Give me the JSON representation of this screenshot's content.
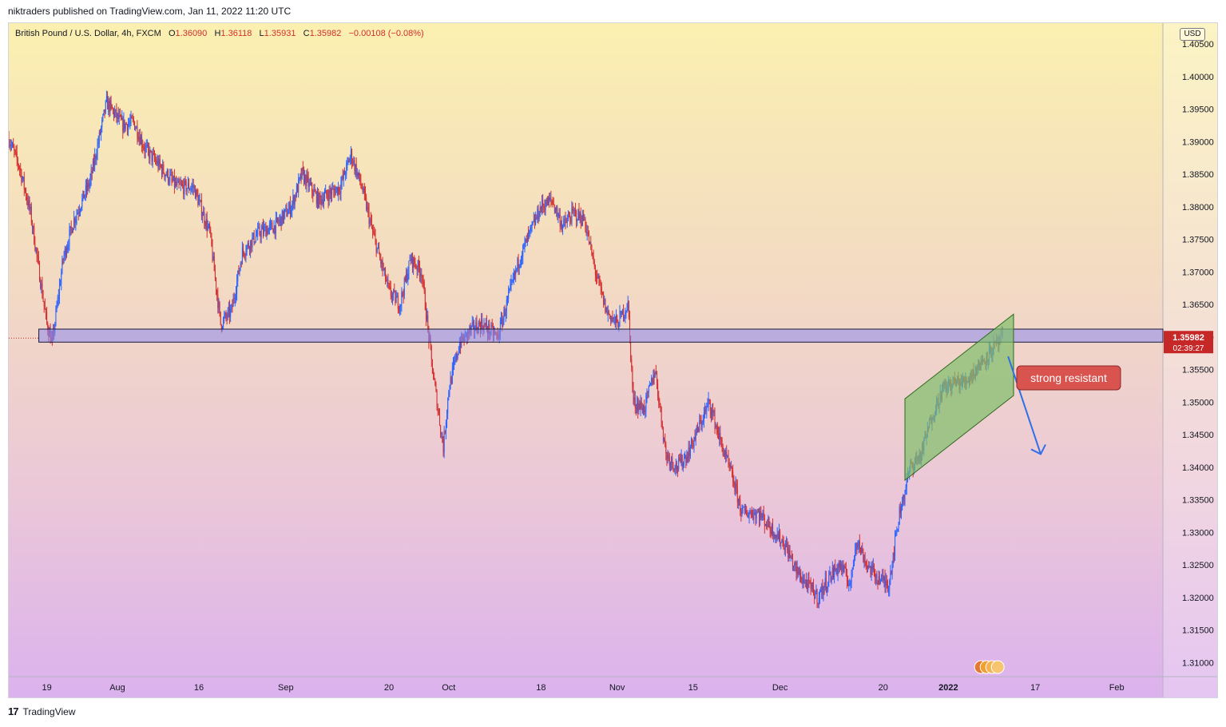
{
  "header": {
    "publisher_line": "niktraders published on TradingView.com, Jan 11, 2022 11:20 UTC"
  },
  "legend": {
    "symbol": "British Pound / U.S. Dollar, 4h, FXCM",
    "open_label": "O",
    "open": "1.36090",
    "high_label": "H",
    "high": "1.36118",
    "low_label": "L",
    "low": "1.35931",
    "close_label": "C",
    "close": "1.35982",
    "change": "−0.00108 (−0.08%)"
  },
  "currency": "USD",
  "footer": {
    "brand": "TradingView",
    "logo_glyph": "17"
  },
  "colors": {
    "up": "#2962ff",
    "down": "#d32f2f",
    "zone_fill": "#8c8cf0",
    "channel_fill": "#7fbf6a",
    "arrow": "#2f6fe8",
    "callout": "#d9534f",
    "price_tag": "#c62828"
  },
  "price_tag": {
    "price": "1.35982",
    "countdown": "02:39:27"
  },
  "annotation": {
    "text": "strong resistant"
  },
  "chart_data": {
    "type": "candlestick",
    "title": "British Pound / U.S. Dollar, 4h, FXCM",
    "ylim": [
      1.305,
      1.405
    ],
    "y_ticks": [
      "1.40500",
      "1.40000",
      "1.39500",
      "1.39000",
      "1.38500",
      "1.38000",
      "1.37500",
      "1.37000",
      "1.36500",
      "1.36000",
      "1.35500",
      "1.35000",
      "1.34500",
      "1.34000",
      "1.33500",
      "1.33000",
      "1.32500",
      "1.32000",
      "1.31500",
      "1.31000"
    ],
    "x_ticks": [
      {
        "label": "19",
        "date": "2021-07-19",
        "bold": false
      },
      {
        "label": "Aug",
        "date": "2021-08-01",
        "bold": false
      },
      {
        "label": "16",
        "date": "2021-08-16",
        "bold": false
      },
      {
        "label": "Sep",
        "date": "2021-09-01",
        "bold": false
      },
      {
        "label": "20",
        "date": "2021-09-20",
        "bold": false
      },
      {
        "label": "Oct",
        "date": "2021-10-01",
        "bold": false
      },
      {
        "label": "18",
        "date": "2021-10-18",
        "bold": false
      },
      {
        "label": "Nov",
        "date": "2021-11-01",
        "bold": false
      },
      {
        "label": "15",
        "date": "2021-11-15",
        "bold": false
      },
      {
        "label": "Dec",
        "date": "2021-12-01",
        "bold": false
      },
      {
        "label": "20",
        "date": "2021-12-20",
        "bold": false
      },
      {
        "label": "2022",
        "date": "2022-01-01",
        "bold": true
      },
      {
        "label": "17",
        "date": "2022-01-17",
        "bold": false
      },
      {
        "label": "Feb",
        "date": "2022-02-01",
        "bold": false
      }
    ],
    "start_date": "2021-07-12",
    "last_bar_date": "2022-01-11",
    "price_path": [
      [
        "2021-07-12",
        1.3905
      ],
      [
        "2021-07-14",
        1.386
      ],
      [
        "2021-07-16",
        1.379
      ],
      [
        "2021-07-19",
        1.362
      ],
      [
        "2021-07-20",
        1.359
      ],
      [
        "2021-07-22",
        1.372
      ],
      [
        "2021-07-24",
        1.378
      ],
      [
        "2021-07-27",
        1.384
      ],
      [
        "2021-07-30",
        1.396
      ],
      [
        "2021-08-02",
        1.3925
      ],
      [
        "2021-08-04",
        1.393
      ],
      [
        "2021-08-06",
        1.389
      ],
      [
        "2021-08-09",
        1.386
      ],
      [
        "2021-08-12",
        1.383
      ],
      [
        "2021-08-15",
        1.383
      ],
      [
        "2021-08-18",
        1.376
      ],
      [
        "2021-08-20",
        1.362
      ],
      [
        "2021-08-22",
        1.364
      ],
      [
        "2021-08-24",
        1.373
      ],
      [
        "2021-08-27",
        1.376
      ],
      [
        "2021-08-30",
        1.377
      ],
      [
        "2021-09-02",
        1.38
      ],
      [
        "2021-09-04",
        1.385
      ],
      [
        "2021-09-07",
        1.381
      ],
      [
        "2021-09-09",
        1.382
      ],
      [
        "2021-09-11",
        1.383
      ],
      [
        "2021-09-13",
        1.388
      ],
      [
        "2021-09-15",
        1.383
      ],
      [
        "2021-09-17",
        1.376
      ],
      [
        "2021-09-20",
        1.367
      ],
      [
        "2021-09-22",
        1.365
      ],
      [
        "2021-09-24",
        1.372
      ],
      [
        "2021-09-26",
        1.37
      ],
      [
        "2021-09-28",
        1.355
      ],
      [
        "2021-09-30",
        1.343
      ],
      [
        "2021-10-01",
        1.352
      ],
      [
        "2021-10-03",
        1.359
      ],
      [
        "2021-10-05",
        1.361
      ],
      [
        "2021-10-07",
        1.362
      ],
      [
        "2021-10-10",
        1.36
      ],
      [
        "2021-10-12",
        1.366
      ],
      [
        "2021-10-14",
        1.372
      ],
      [
        "2021-10-16",
        1.376
      ],
      [
        "2021-10-18",
        1.38
      ],
      [
        "2021-10-20",
        1.381
      ],
      [
        "2021-10-22",
        1.377
      ],
      [
        "2021-10-24",
        1.379
      ],
      [
        "2021-10-26",
        1.378
      ],
      [
        "2021-10-28",
        1.37
      ],
      [
        "2021-10-30",
        1.364
      ],
      [
        "2021-11-01",
        1.362
      ],
      [
        "2021-11-03",
        1.365
      ],
      [
        "2021-11-04",
        1.35
      ],
      [
        "2021-11-06",
        1.349
      ],
      [
        "2021-11-08",
        1.355
      ],
      [
        "2021-11-10",
        1.342
      ],
      [
        "2021-11-12",
        1.34
      ],
      [
        "2021-11-14",
        1.342
      ],
      [
        "2021-11-16",
        1.346
      ],
      [
        "2021-11-18",
        1.35
      ],
      [
        "2021-11-20",
        1.344
      ],
      [
        "2021-11-22",
        1.339
      ],
      [
        "2021-11-24",
        1.333
      ],
      [
        "2021-11-27",
        1.333
      ],
      [
        "2021-11-30",
        1.33
      ],
      [
        "2021-12-02",
        1.328
      ],
      [
        "2021-12-04",
        1.324
      ],
      [
        "2021-12-06",
        1.322
      ],
      [
        "2021-12-08",
        1.32
      ],
      [
        "2021-12-10",
        1.323
      ],
      [
        "2021-12-12",
        1.325
      ],
      [
        "2021-12-14",
        1.322
      ],
      [
        "2021-12-15",
        1.329
      ],
      [
        "2021-12-17",
        1.325
      ],
      [
        "2021-12-19",
        1.323
      ],
      [
        "2021-12-21",
        1.322
      ],
      [
        "2021-12-23",
        1.333
      ],
      [
        "2021-12-25",
        1.34
      ],
      [
        "2021-12-27",
        1.342
      ],
      [
        "2021-12-29",
        1.348
      ],
      [
        "2021-12-31",
        1.352
      ],
      [
        "2022-01-02",
        1.353
      ],
      [
        "2022-01-04",
        1.353
      ],
      [
        "2022-01-06",
        1.355
      ],
      [
        "2022-01-09",
        1.358
      ],
      [
        "2022-01-11",
        1.35982
      ]
    ],
    "support_resistance_zone": {
      "from": "2021-07-19",
      "to_edge": true,
      "upper": 1.3612,
      "lower": 1.3592
    },
    "ascending_channel": {
      "from": "2021-12-24",
      "to": "2022-01-13",
      "upper_start": 1.3505,
      "upper_end": 1.3635,
      "lower_start": 1.338,
      "lower_end": 1.351
    },
    "forecast_arrow": {
      "from": [
        "2022-01-12",
        1.357
      ],
      "to": [
        "2022-01-18",
        1.342
      ]
    },
    "annotation": {
      "text": "strong resistant",
      "date": "2022-01-18",
      "price": 1.3558
    },
    "grid": false,
    "legend": "top-left"
  }
}
